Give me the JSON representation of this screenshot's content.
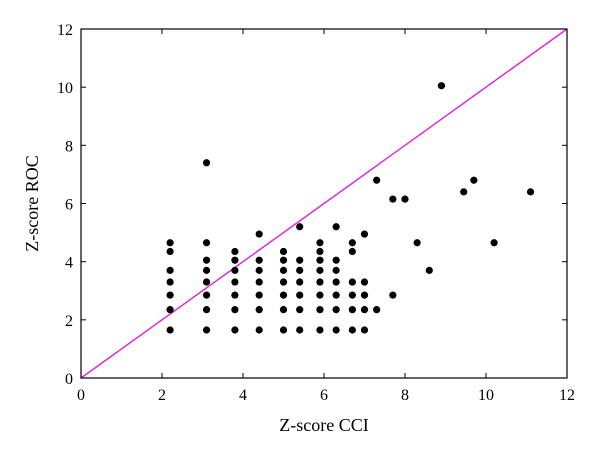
{
  "chart_data": {
    "type": "scatter",
    "title": "",
    "xlabel": "Z-score CCI",
    "ylabel": "Z-score ROC",
    "xlim": [
      0,
      12
    ],
    "ylim": [
      0,
      12
    ],
    "xticks": [
      "0",
      "2",
      "4",
      "6",
      "8",
      "10",
      "12"
    ],
    "yticks": [
      "0",
      "2",
      "4",
      "6",
      "8",
      "10",
      "12"
    ],
    "grid": false,
    "legend": "none",
    "reference_line": {
      "x": [
        0,
        12
      ],
      "y": [
        0,
        12
      ],
      "color": "#e020e0"
    },
    "point_color": "#000000",
    "points": [
      [
        2.2,
        4.65
      ],
      [
        2.2,
        4.35
      ],
      [
        2.2,
        3.7
      ],
      [
        2.2,
        3.3
      ],
      [
        2.2,
        2.85
      ],
      [
        2.2,
        2.35
      ],
      [
        2.2,
        1.65
      ],
      [
        3.1,
        7.4
      ],
      [
        3.1,
        4.65
      ],
      [
        3.1,
        4.05
      ],
      [
        3.1,
        3.7
      ],
      [
        3.1,
        3.3
      ],
      [
        3.1,
        2.85
      ],
      [
        3.1,
        2.35
      ],
      [
        3.1,
        1.65
      ],
      [
        3.8,
        4.35
      ],
      [
        3.8,
        4.05
      ],
      [
        3.8,
        3.7
      ],
      [
        3.8,
        3.3
      ],
      [
        3.8,
        2.85
      ],
      [
        3.8,
        2.35
      ],
      [
        3.8,
        1.65
      ],
      [
        4.4,
        4.95
      ],
      [
        4.4,
        4.05
      ],
      [
        4.4,
        3.7
      ],
      [
        4.4,
        3.3
      ],
      [
        4.4,
        2.85
      ],
      [
        4.4,
        2.35
      ],
      [
        4.4,
        1.65
      ],
      [
        5.0,
        4.35
      ],
      [
        5.0,
        4.05
      ],
      [
        5.0,
        3.7
      ],
      [
        5.0,
        3.3
      ],
      [
        5.0,
        2.85
      ],
      [
        5.0,
        2.35
      ],
      [
        5.0,
        1.65
      ],
      [
        5.4,
        5.2
      ],
      [
        5.4,
        4.05
      ],
      [
        5.4,
        3.7
      ],
      [
        5.4,
        3.3
      ],
      [
        5.4,
        2.85
      ],
      [
        5.4,
        2.35
      ],
      [
        5.4,
        1.65
      ],
      [
        5.9,
        4.65
      ],
      [
        5.9,
        4.35
      ],
      [
        5.9,
        4.05
      ],
      [
        5.9,
        3.7
      ],
      [
        5.9,
        3.3
      ],
      [
        5.9,
        2.85
      ],
      [
        5.9,
        2.35
      ],
      [
        5.9,
        1.65
      ],
      [
        6.3,
        5.2
      ],
      [
        6.3,
        4.05
      ],
      [
        6.3,
        3.7
      ],
      [
        6.3,
        3.3
      ],
      [
        6.3,
        2.85
      ],
      [
        6.3,
        2.35
      ],
      [
        6.3,
        1.65
      ],
      [
        6.7,
        4.65
      ],
      [
        6.7,
        4.35
      ],
      [
        6.7,
        3.3
      ],
      [
        6.7,
        2.85
      ],
      [
        6.7,
        2.35
      ],
      [
        6.7,
        1.65
      ],
      [
        7.0,
        4.95
      ],
      [
        7.0,
        3.3
      ],
      [
        7.0,
        2.85
      ],
      [
        7.0,
        2.35
      ],
      [
        7.0,
        1.65
      ],
      [
        7.3,
        6.8
      ],
      [
        7.3,
        2.35
      ],
      [
        7.7,
        6.15
      ],
      [
        7.7,
        2.85
      ],
      [
        8.0,
        6.15
      ],
      [
        8.3,
        4.65
      ],
      [
        8.6,
        3.7
      ],
      [
        8.9,
        10.05
      ],
      [
        9.45,
        6.4
      ],
      [
        9.7,
        6.8
      ],
      [
        10.2,
        4.65
      ],
      [
        11.1,
        6.4
      ]
    ]
  }
}
